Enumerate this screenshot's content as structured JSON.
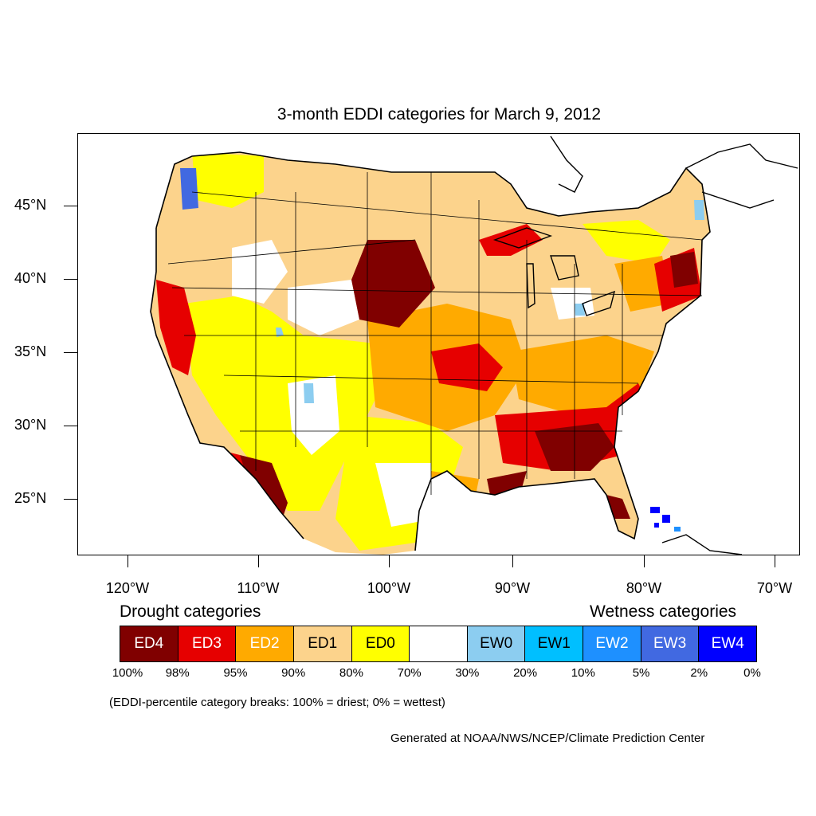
{
  "map": {
    "title": "3-month EDDI categories for March 9, 2012",
    "lat_labels": [
      "45°N",
      "40°N",
      "35°N",
      "30°N",
      "25°N"
    ],
    "lon_labels": [
      "120°W",
      "110°W",
      "100°W",
      "90°W",
      "80°W",
      "70°W"
    ],
    "region": "Contiguous United States with portions of Canada, Mexico and the Bahamas",
    "palette": {
      "ED4": "#800000",
      "ED3": "#e60000",
      "ED2": "#ffaa00",
      "ED1": "#fcd38c",
      "ED0": "#ffff00",
      "neutral": "#ffffff",
      "EW0": "#8ccdf0",
      "EW1": "#00bfff",
      "EW2": "#1e90ff",
      "EW3": "#4169e1",
      "EW4": "#0000ff"
    }
  },
  "legend": {
    "drought_heading": "Drought categories",
    "wetness_heading": "Wetness categories",
    "categories": [
      {
        "label": "ED4",
        "color": "#800000",
        "text_color": "#ffffff"
      },
      {
        "label": "ED3",
        "color": "#e60000",
        "text_color": "#ffffff"
      },
      {
        "label": "ED2",
        "color": "#ffaa00",
        "text_color": "#ffffff"
      },
      {
        "label": "ED1",
        "color": "#fcd38c",
        "text_color": "#000000"
      },
      {
        "label": "ED0",
        "color": "#ffff00",
        "text_color": "#000000"
      },
      {
        "label": "",
        "color": "#ffffff",
        "text_color": "#000000"
      },
      {
        "label": "EW0",
        "color": "#8ccdf0",
        "text_color": "#000000"
      },
      {
        "label": "EW1",
        "color": "#00bfff",
        "text_color": "#000000"
      },
      {
        "label": "EW2",
        "color": "#1e90ff",
        "text_color": "#ffffff"
      },
      {
        "label": "EW3",
        "color": "#4169e1",
        "text_color": "#ffffff"
      },
      {
        "label": "EW4",
        "color": "#0000ff",
        "text_color": "#ffffff"
      }
    ],
    "percentiles": [
      "100%",
      "98%",
      "95%",
      "90%",
      "80%",
      "70%",
      "30%",
      "20%",
      "10%",
      "5%",
      "2%",
      "0%"
    ],
    "note": "(EDDI-percentile category breaks: 100% = driest; 0% = wettest)"
  },
  "credit": "Generated at NOAA/NWS/NCEP/Climate Prediction Center"
}
